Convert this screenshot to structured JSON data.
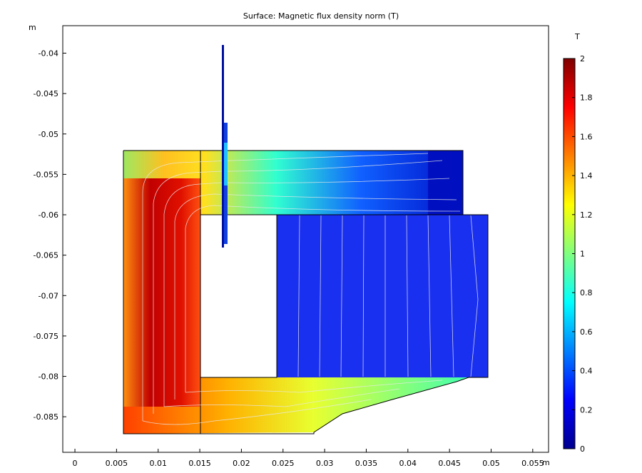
{
  "chart_data": {
    "type": "surface",
    "title": "Surface: Magnetic flux density norm (T)",
    "x_unit": "m",
    "y_unit": "m",
    "xlim": [
      -0.00146,
      0.0569
    ],
    "xticks": [
      0,
      0.005,
      0.01,
      0.015,
      0.02,
      0.025,
      0.03,
      0.035,
      0.04,
      0.045,
      0.05,
      0.055
    ],
    "ylim": [
      -0.0894,
      -0.0366
    ],
    "yticks": [
      -0.04,
      -0.045,
      -0.05,
      -0.055,
      -0.06,
      -0.065,
      -0.07,
      -0.075,
      -0.08,
      -0.085
    ],
    "colorbar": {
      "label": "T",
      "lim": [
        0,
        2
      ],
      "ticks": [
        0,
        0.2,
        0.4,
        0.6,
        0.8,
        1,
        1.2,
        1.4,
        1.6,
        1.8,
        2
      ]
    }
  }
}
